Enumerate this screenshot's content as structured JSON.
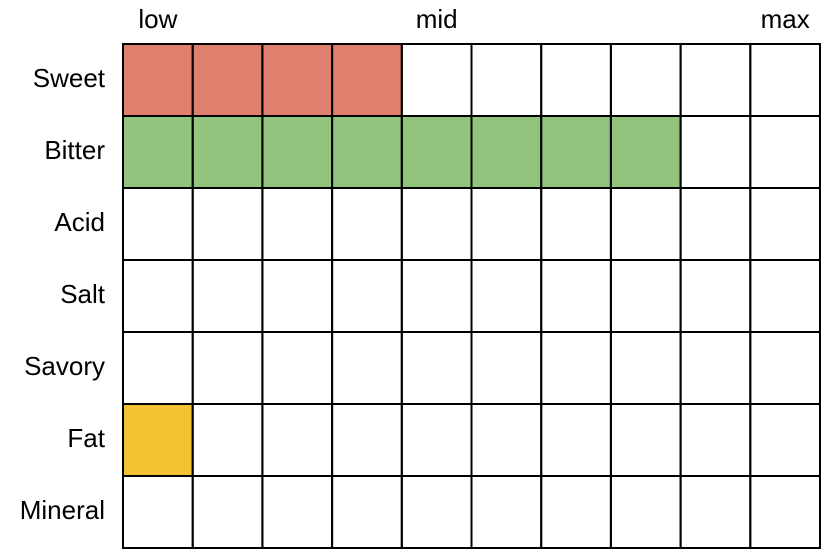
{
  "chart_data": {
    "type": "bar",
    "orientation": "horizontal",
    "categories": [
      "Sweet",
      "Bitter",
      "Acid",
      "Salt",
      "Savory",
      "Fat",
      "Mineral"
    ],
    "values": [
      4,
      8,
      0,
      0,
      0,
      1,
      0
    ],
    "colors": [
      "#e07f6e",
      "#93c47d",
      null,
      null,
      null,
      "#f1c232",
      null
    ],
    "xlim": [
      0,
      10
    ],
    "xticks": [
      {
        "value": 1,
        "label": "low"
      },
      {
        "value": 5,
        "label": "mid"
      },
      {
        "value": 10,
        "label": "max"
      }
    ],
    "grid": true
  }
}
